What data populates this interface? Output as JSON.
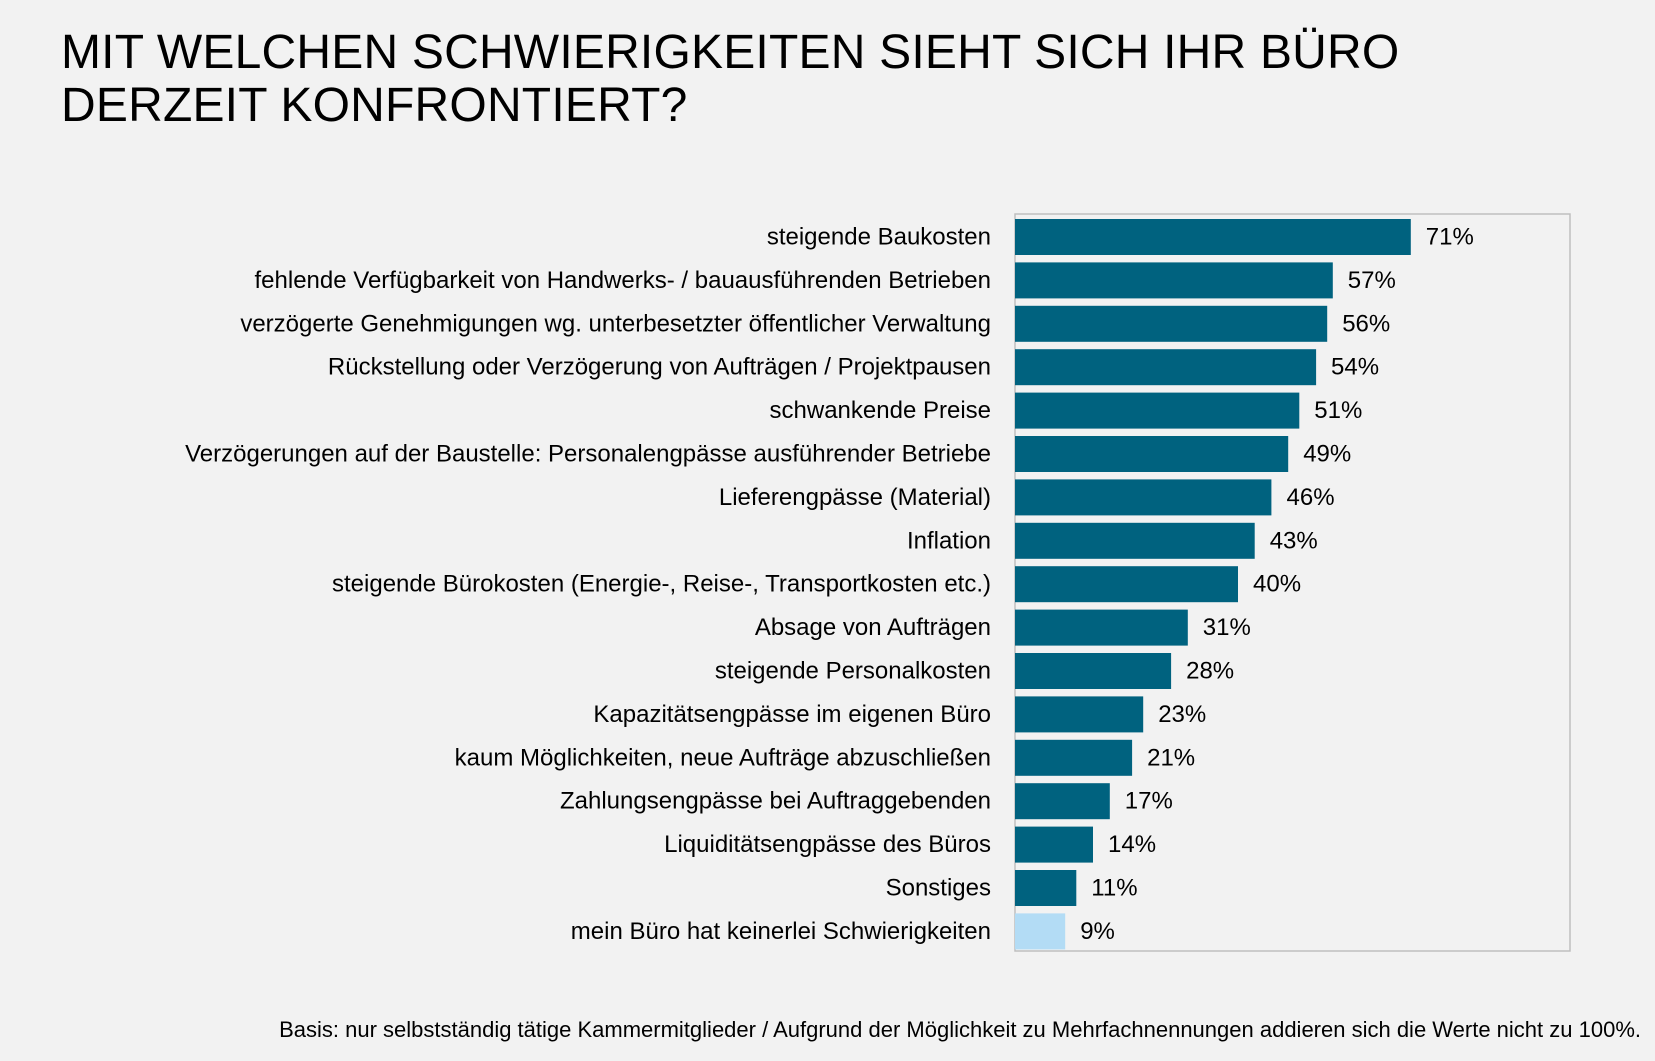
{
  "title_line1": "MIT WELCHEN SCHWIERIGKEITEN SIEHT SICH IHR BÜRO",
  "title_line2": "DERZEIT KONFRONTIERT?",
  "footnote": "Basis: nur selbstständig tätige Kammermitglieder / Aufgrund der Möglichkeit zu Mehrfachnennungen addieren sich die Werte nicht zu 100%.",
  "colors": {
    "bar": "#00627f",
    "bar_highlight": "#b3dcf5",
    "plot_border": "#bfbfbf",
    "background": "#f2f2f2"
  },
  "chart_data": {
    "type": "bar",
    "orientation": "horizontal",
    "categories": [
      "steigende Baukosten",
      "fehlende Verfügbarkeit von Handwerks- / bauausführenden Betrieben",
      "verzögerte Genehmigungen wg. unterbesetzter öffentlicher Verwaltung",
      "Rückstellung oder Verzögerung von Aufträgen / Projektpausen",
      "schwankende Preise",
      "Verzögerungen auf der Baustelle: Personalengpässe ausführender Betriebe",
      "Lieferengpässe (Material)",
      "Inflation",
      "steigende Bürokosten (Energie-, Reise-, Transportkosten etc.)",
      "Absage von Aufträgen",
      "steigende Personalkosten",
      "Kapazitätsengpässe im eigenen Büro",
      "kaum Möglichkeiten, neue Aufträge abzuschließen",
      "Zahlungsengpässe bei Auftraggebenden",
      "Liquiditätsengpässe des Büros",
      "Sonstiges",
      "mein Büro hat keinerlei Schwierigkeiten"
    ],
    "values": [
      71,
      57,
      56,
      54,
      51,
      49,
      46,
      43,
      40,
      31,
      28,
      23,
      21,
      17,
      14,
      11,
      9
    ],
    "value_labels": [
      "71%",
      "57%",
      "56%",
      "54%",
      "51%",
      "49%",
      "46%",
      "43%",
      "40%",
      "31%",
      "28%",
      "23%",
      "21%",
      "17%",
      "14%",
      "11%",
      "9%"
    ],
    "highlight_index": 16,
    "xlim": [
      0,
      100
    ],
    "grid": false,
    "legend": "none"
  }
}
